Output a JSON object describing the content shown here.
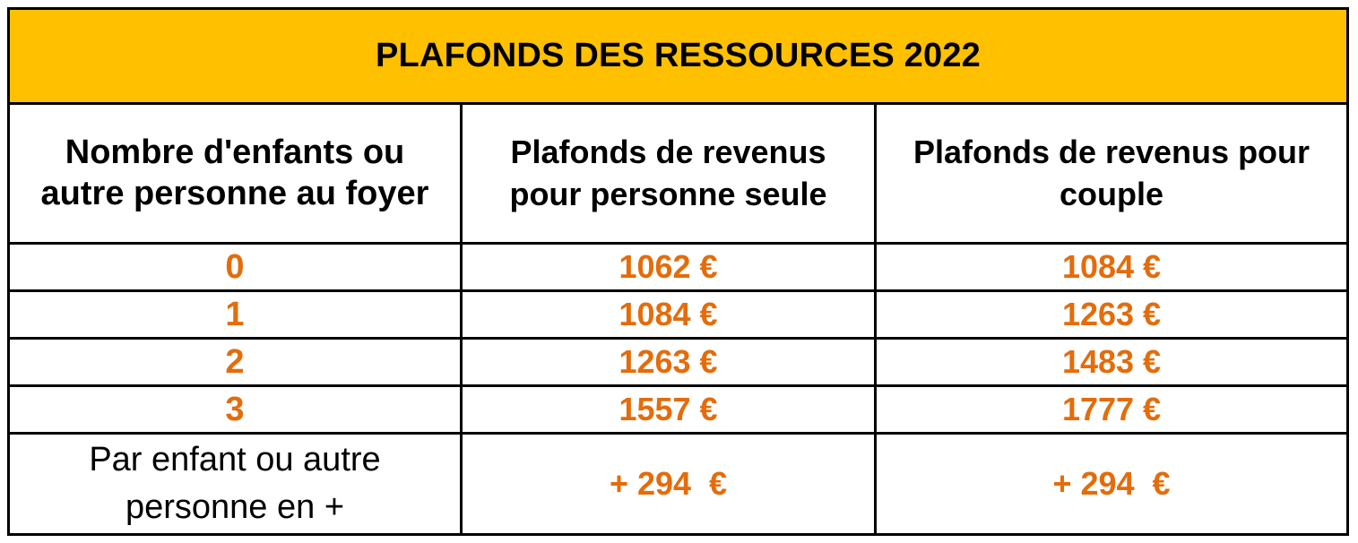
{
  "title": "PLAFONDS DES RESSOURCES 2022",
  "colors": {
    "title_background": "#FFC000",
    "value_text": "#E46C0A",
    "border": "#000000"
  },
  "headers": [
    "Nombre d'enfants ou autre personne au foyer",
    "Plafonds de revenus pour personne seule",
    "Plafonds de revenus pour couple"
  ],
  "rows": [
    {
      "count": "0",
      "single": "1062 €",
      "couple": "1084 €"
    },
    {
      "count": "1",
      "single": "1084 €",
      "couple": "1263 €"
    },
    {
      "count": "2",
      "single": "1263 €",
      "couple": "1483 €"
    },
    {
      "count": "3",
      "single": "1557 €",
      "couple": "1777 €"
    }
  ],
  "extra_row": {
    "label": "Par enfant ou autre personne en +",
    "single": "+ 294  €",
    "couple": "+ 294  €"
  }
}
